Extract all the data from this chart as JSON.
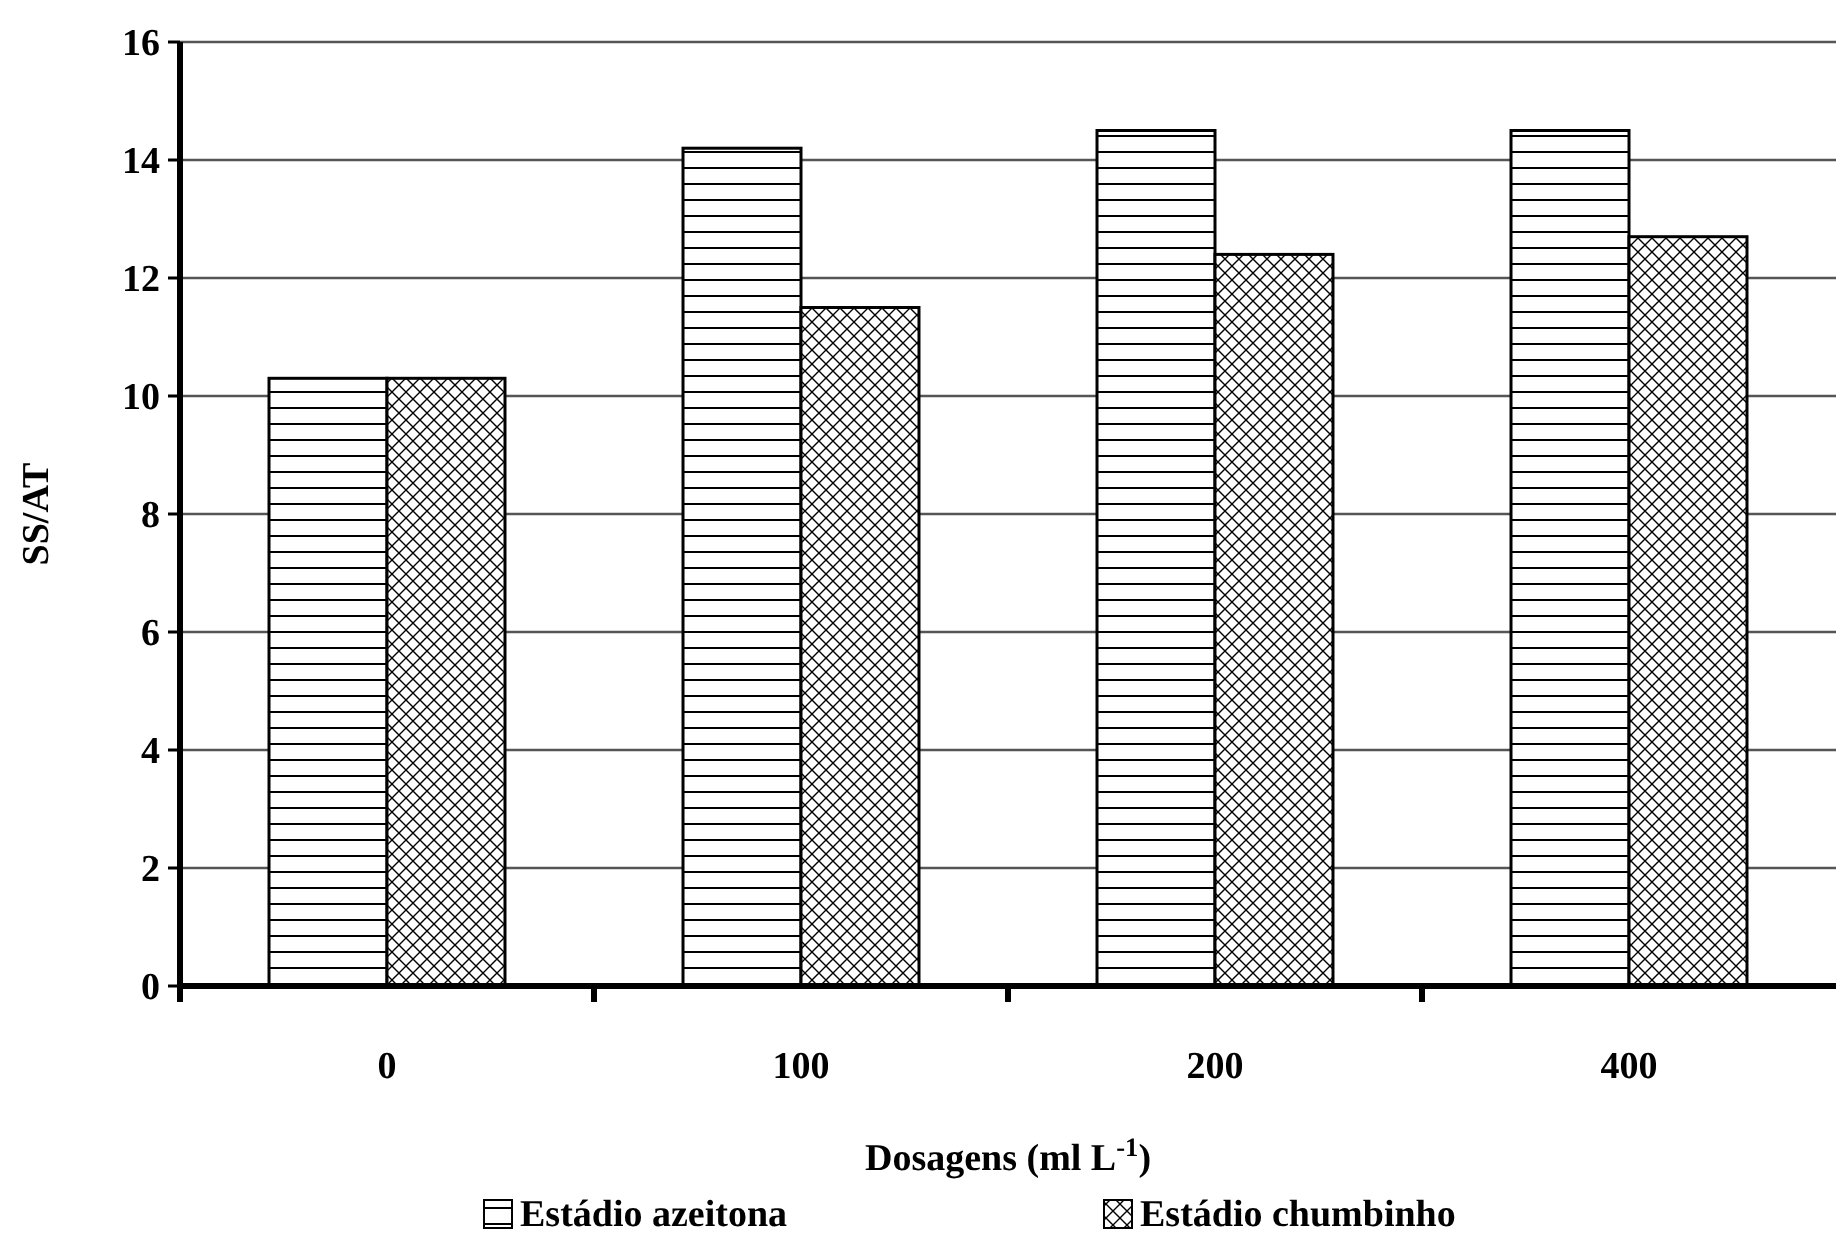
{
  "chart_data": {
    "type": "bar",
    "xlabel": "Dosagens (ml L$^{-1}$)",
    "ylabel": "SS/AT",
    "categories": [
      "0",
      "100",
      "200",
      "400"
    ],
    "series": [
      {
        "name": "Estádio azeitona",
        "color": "#000000",
        "values": [
          10.3,
          14.2,
          14.5,
          14.5
        ]
      },
      {
        "name": "Estádio chumbinho",
        "color": "#000000",
        "values": [
          10.3,
          11.5,
          12.4,
          12.7
        ]
      }
    ],
    "ylim": [
      0,
      16
    ],
    "yticks": [
      0,
      2,
      4,
      6,
      8,
      10,
      12,
      14,
      16
    ],
    "grid": "y",
    "legend": "bottom"
  }
}
